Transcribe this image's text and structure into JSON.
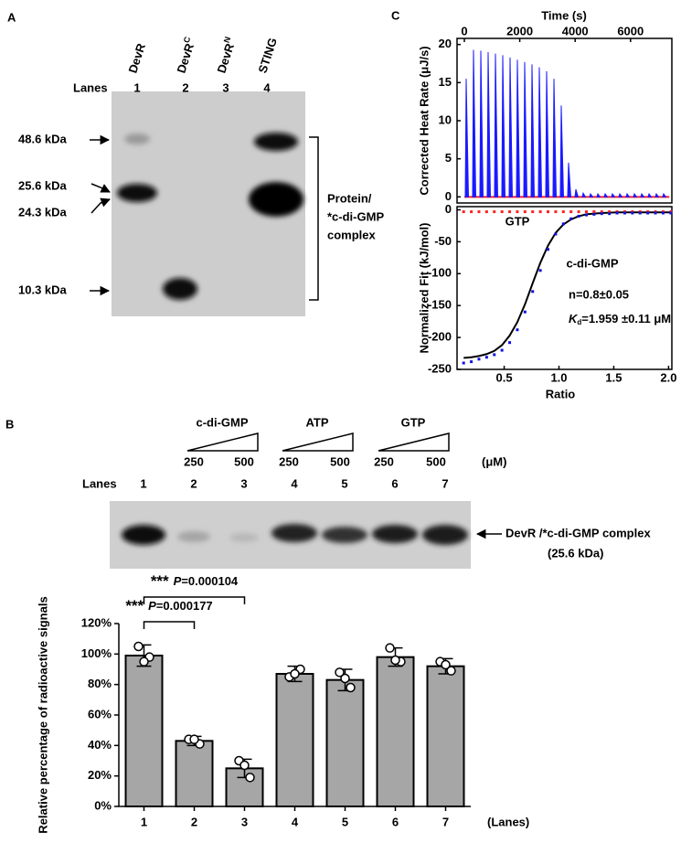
{
  "panels": {
    "A": {
      "label": "A",
      "lanes_label": "Lanes",
      "lanes": [
        {
          "name": "DevR",
          "number": "1"
        },
        {
          "name": "DevR",
          "sup": "C",
          "number": "2"
        },
        {
          "name": "DevR",
          "sup": "N",
          "number": "3"
        },
        {
          "name": "STING",
          "number": "4"
        }
      ],
      "markers": [
        "48.6 kDa",
        "25.6 kDa",
        "24.3 kDa",
        "10.3 kDa"
      ],
      "bracket_label": [
        "Protein/",
        "*c-di-GMP",
        "complex"
      ]
    },
    "B": {
      "label": "B",
      "treatments": [
        {
          "name": "c-di-GMP",
          "low": "250",
          "high": "500"
        },
        {
          "name": "ATP",
          "low": "250",
          "high": "500"
        },
        {
          "name": "GTP",
          "low": "250",
          "high": "500"
        }
      ],
      "unit": "(μM)",
      "lanes_label": "Lanes",
      "lanes": [
        "1",
        "2",
        "3",
        "4",
        "5",
        "6",
        "7"
      ],
      "band_label": "DevR /*c-di-GMP complex",
      "band_size": "(25.6 kDa)"
    },
    "C": {
      "label": "C"
    }
  },
  "chart_data": [
    {
      "type": "bar",
      "y_label": "Relative percentage of radioactive signals",
      "x_label": "(Lanes)",
      "categories": [
        "1",
        "2",
        "3",
        "4",
        "5",
        "6",
        "7"
      ],
      "values": [
        99,
        43,
        25,
        87,
        83,
        98,
        92
      ],
      "errors": [
        7,
        3,
        6,
        5,
        7,
        6,
        5
      ],
      "points": [
        [
          105,
          98,
          95
        ],
        [
          44,
          41,
          44
        ],
        [
          30,
          19,
          27
        ],
        [
          85,
          90,
          87
        ],
        [
          88,
          78,
          84
        ],
        [
          104,
          95,
          96
        ],
        [
          95,
          89,
          93
        ]
      ],
      "color": "#a6a6a6",
      "ylim": [
        0,
        120
      ],
      "yticks": [
        {
          "value": 0,
          "label": "0%"
        },
        {
          "value": 20,
          "label": "20%"
        },
        {
          "value": 40,
          "label": "40%"
        },
        {
          "value": 60,
          "label": "60%"
        },
        {
          "value": 80,
          "label": "80%"
        },
        {
          "value": 100,
          "label": "100%"
        },
        {
          "value": 120,
          "label": "120%"
        }
      ],
      "annotations": [
        {
          "stars": "***",
          "p": "P",
          "text": "=0.000104"
        },
        {
          "stars": "***",
          "p": "P",
          "text": "=0.000177"
        }
      ]
    },
    {
      "type": "spikes",
      "x_label": "Time (s)",
      "y_label": "Corrected Heat Rate (μJ/s)",
      "heat": {
        "color": "#1a1aff",
        "x": [
          66,
          330,
          594,
          858,
          1122,
          1386,
          1650,
          1914,
          2178,
          2442,
          2706,
          2970,
          3234,
          3498,
          3762,
          4026,
          4290,
          4554,
          4818,
          5082,
          5346,
          5610,
          5874,
          6138,
          6402,
          6666,
          6930,
          7194
        ],
        "values": [
          15.5,
          19.3,
          19.2,
          19,
          18.8,
          18.6,
          18.3,
          18,
          17.7,
          17.4,
          17,
          16.5,
          15.5,
          12,
          4.5,
          1,
          0.5,
          0.4,
          0.4,
          0.4,
          0.4,
          0.4,
          0.4,
          0.4,
          0.4,
          0.4,
          0.4,
          0.4
        ]
      },
      "control": {
        "color": "#ff2020",
        "x": [
          0,
          7400
        ],
        "values": [
          0,
          0
        ]
      },
      "xlim": [
        -264,
        7492
      ],
      "xticks": [
        0,
        2000,
        4000,
        6000
      ],
      "ylim": [
        -0.8,
        20.8
      ],
      "yticks": [
        0,
        5,
        10,
        15,
        20
      ]
    },
    {
      "type": "scatter",
      "x_label": "Ratio",
      "y_label": "Normalized Fit (kJ/mol)",
      "series": [
        {
          "name": "GTP",
          "color": "#ff2020",
          "x": [
            0.13,
            0.2,
            0.27,
            0.34,
            0.41,
            0.48,
            0.55,
            0.62,
            0.69,
            0.76,
            0.83,
            0.9,
            0.97,
            1.04,
            1.11,
            1.18,
            1.25,
            1.32,
            1.39,
            1.46,
            1.53,
            1.6,
            1.67,
            1.74,
            1.81,
            1.88,
            1.95,
            2.02
          ],
          "values": [
            -3,
            -3,
            -3,
            -3,
            -3,
            -3,
            -3,
            -3,
            -3,
            -3,
            -3,
            -3,
            -3,
            -3,
            -3,
            -3,
            -3,
            -3,
            -3,
            -3,
            -3,
            -3,
            -3,
            -3,
            -3,
            -3,
            -3,
            -3
          ]
        },
        {
          "name": "c-di-GMP",
          "color": "#1010e0",
          "x": [
            0.13,
            0.2,
            0.27,
            0.34,
            0.41,
            0.48,
            0.55,
            0.62,
            0.69,
            0.76,
            0.83,
            0.9,
            0.97,
            1.04,
            1.11,
            1.18,
            1.25,
            1.32,
            1.39,
            1.46,
            1.53,
            1.6,
            1.67,
            1.74,
            1.81,
            1.88,
            1.95,
            2.02
          ],
          "values": [
            -240,
            -238,
            -234,
            -231,
            -227,
            -220,
            -208,
            -188,
            -160,
            -128,
            -95,
            -62,
            -38,
            -22,
            -14,
            -10,
            -8,
            -7,
            -6,
            -6,
            -5,
            -5,
            -5,
            -5,
            -5,
            -5,
            -5,
            -5
          ]
        }
      ],
      "fit": {
        "color": "#000000",
        "x": [
          0.13,
          0.2,
          0.27,
          0.34,
          0.41,
          0.48,
          0.55,
          0.62,
          0.69,
          0.76,
          0.83,
          0.9,
          0.97,
          1.04,
          1.11,
          1.18,
          1.25,
          1.32,
          1.39,
          1.46,
          1.53,
          1.6,
          1.67,
          1.74,
          1.81,
          1.88,
          1.95,
          2.02
        ],
        "values": [
          -232,
          -231,
          -229,
          -226,
          -221,
          -212,
          -197,
          -176,
          -148,
          -115,
          -83,
          -56,
          -36,
          -23,
          -15,
          -10,
          -7,
          -6,
          -5,
          -4.5,
          -4,
          -4,
          -4,
          -4,
          -4,
          -4,
          -4,
          -4
        ]
      },
      "stoichiometry": "n=0.8±0.05",
      "kd": {
        "k": "K",
        "sub": "d",
        "text": "=1.959 ±0.11 μM"
      },
      "xlim": [
        0.07,
        2.03
      ],
      "xticks": [
        0.5,
        {
          "value": 1,
          "label": "1.0"
        },
        1.5,
        {
          "value": 2,
          "label": "2.0"
        }
      ],
      "ylim": [
        -250,
        5
      ],
      "yticks": [
        0,
        -50,
        -100,
        -150,
        -200,
        -250
      ]
    }
  ]
}
